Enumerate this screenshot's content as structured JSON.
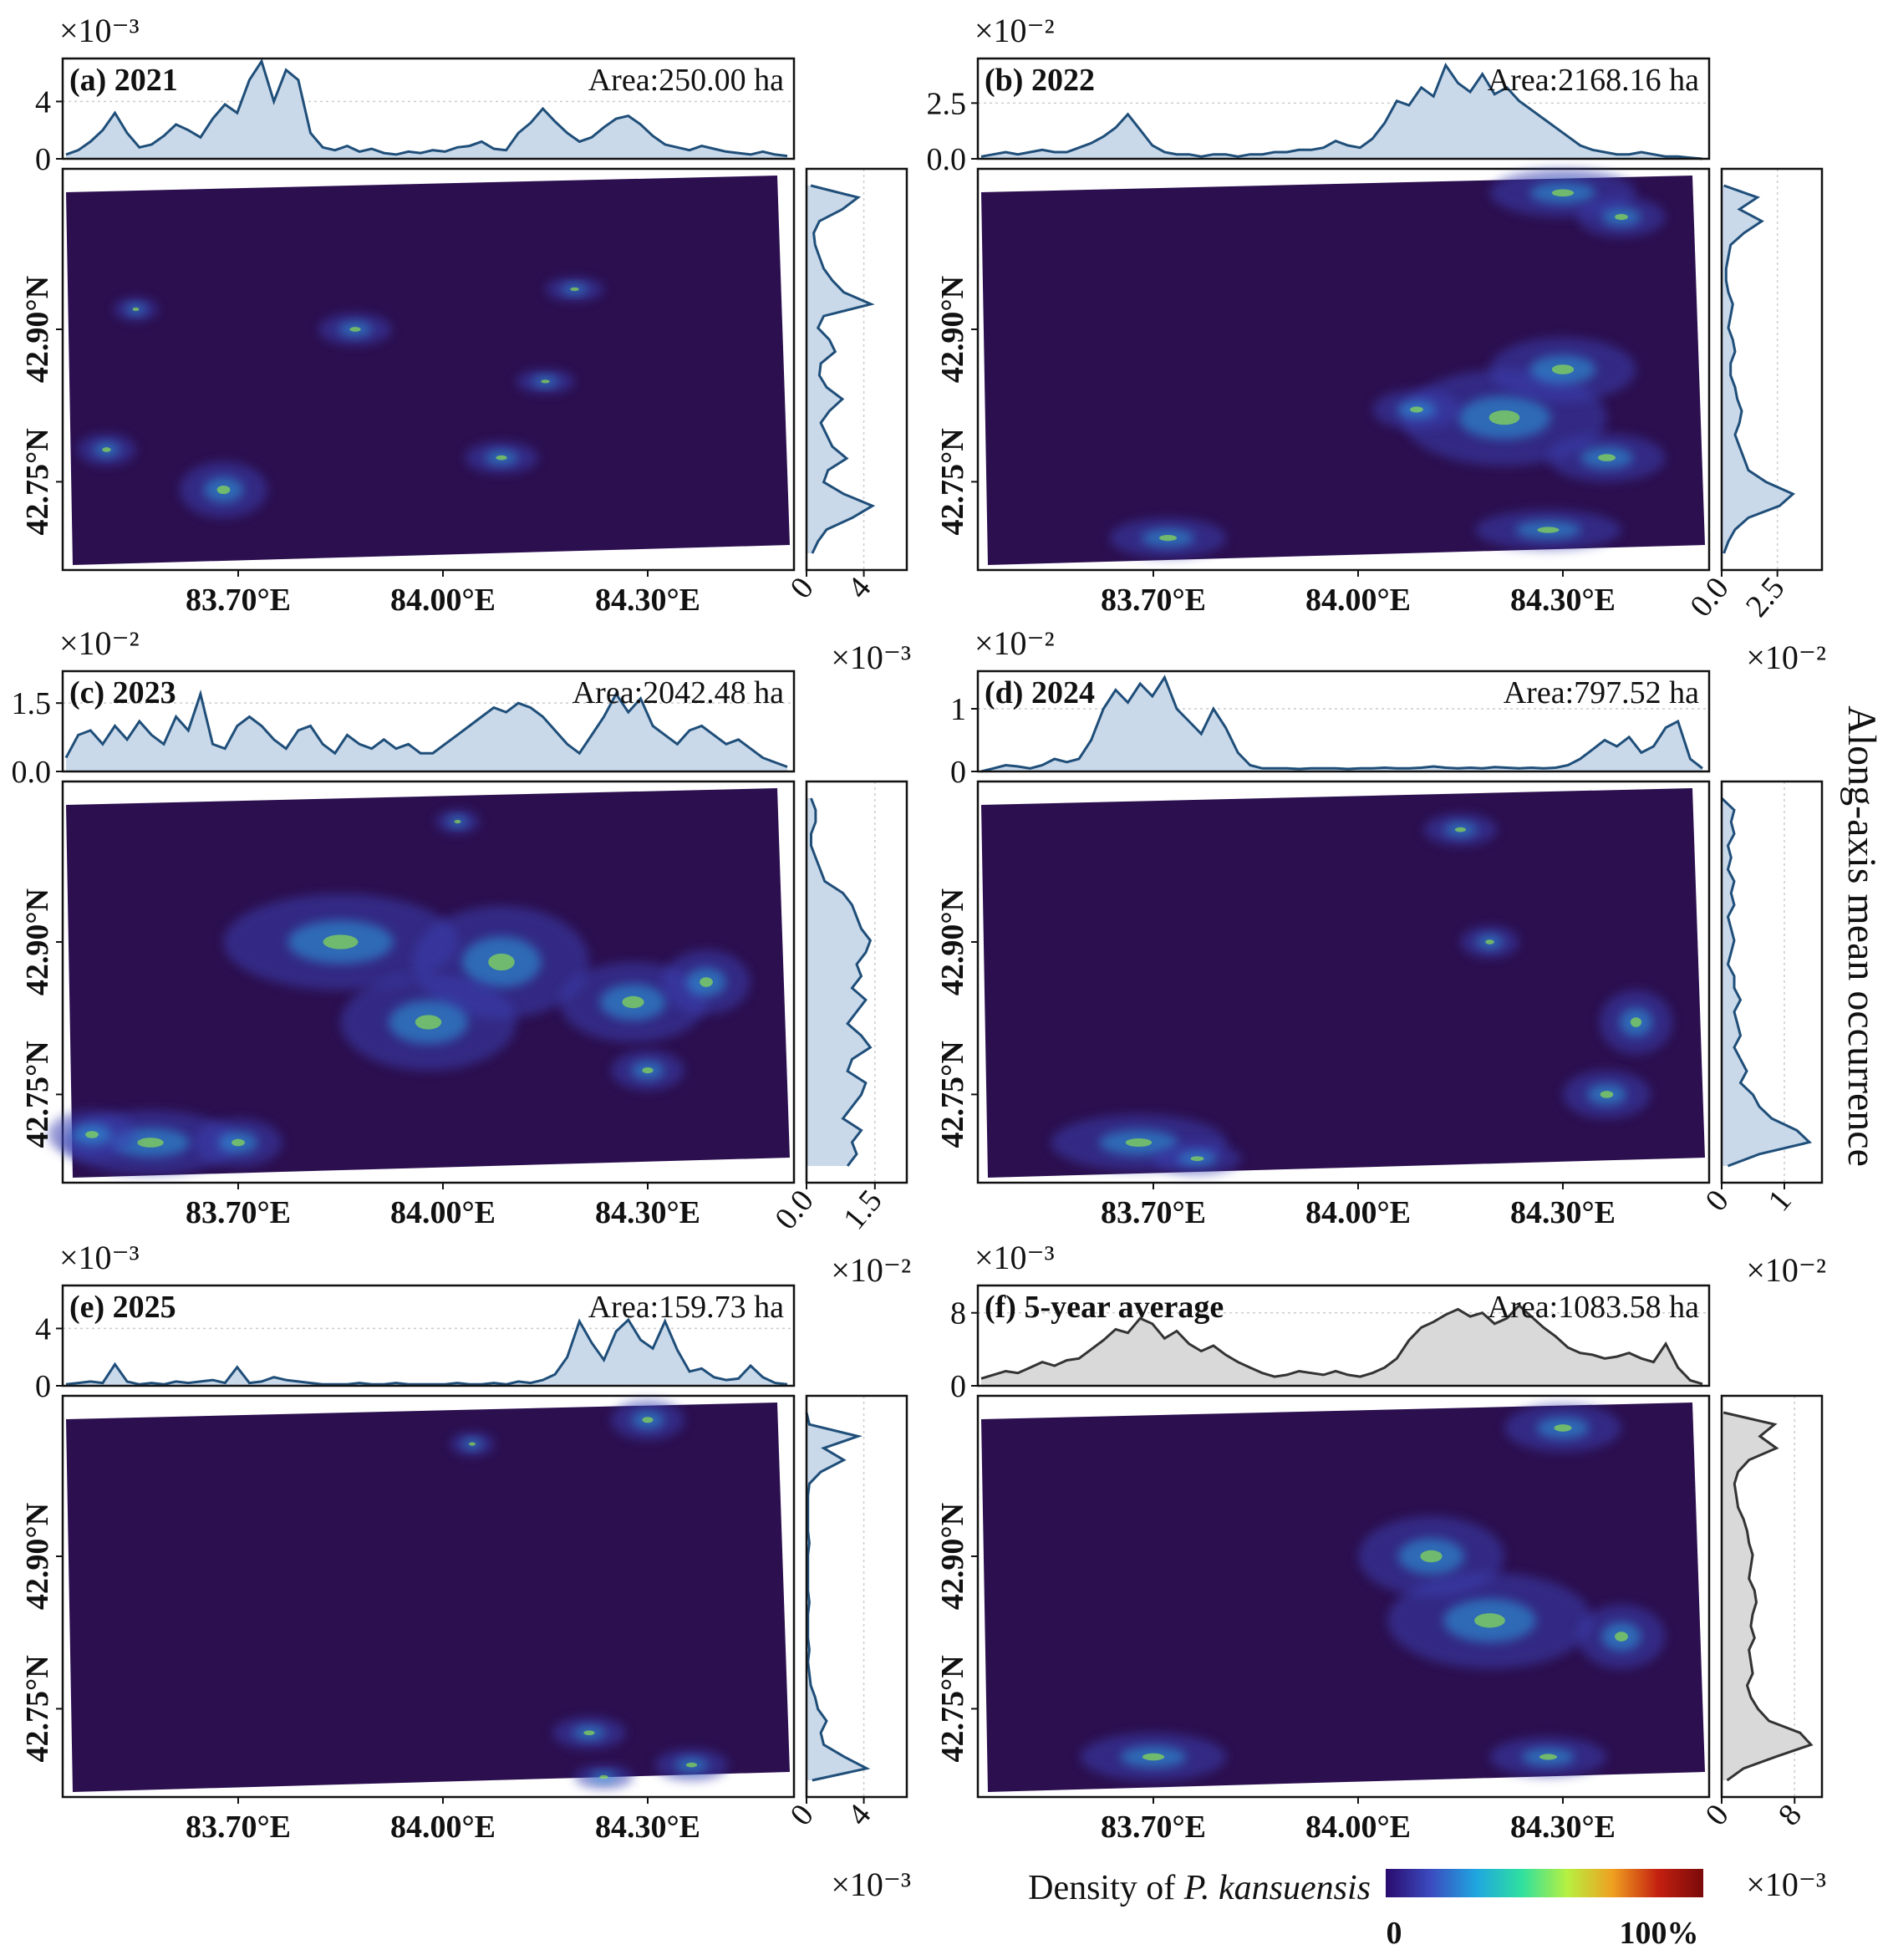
{
  "figure": {
    "right_axis_label": "Along-axis mean occurrence",
    "colorbar": {
      "label_prefix": "Density of ",
      "label_species": "P. kansuensis",
      "min_label": "0",
      "max_label": "100%",
      "colors": [
        "#2a0a6e",
        "#3b4cc0",
        "#1fa6e0",
        "#2fe0a0",
        "#b6f040",
        "#f0a020",
        "#c42010",
        "#7a0a0a"
      ]
    },
    "map_background": "#2b0f4f",
    "line_color_annual": "#1f4e79",
    "fill_color_annual": "#c9d9ea",
    "line_color_avg": "#333333",
    "fill_color_avg": "#d9d9d9"
  },
  "chart_data": [
    {
      "type": "area",
      "panel": "a",
      "title": "(a) 2021",
      "area_text": "Area:250.00 ha",
      "top_multiplier": "×10⁻³",
      "top_ylim": [
        0,
        7
      ],
      "top_ticks": [
        "0",
        "4"
      ],
      "top_tick_values": [
        0,
        4
      ],
      "right_multiplier": "×10⁻³",
      "right_xlim": [
        0,
        7
      ],
      "right_ticks": [
        "0",
        "4"
      ],
      "right_tick_values": [
        0,
        4
      ],
      "x_ticks": [
        "83.70°E",
        "84.00°E",
        "84.30°E"
      ],
      "y_ticks": [
        "42.90°N",
        "42.75°N"
      ],
      "top_profile": [
        0.3,
        0.6,
        1.2,
        2.0,
        3.2,
        1.8,
        0.8,
        1.0,
        1.6,
        2.4,
        2.0,
        1.5,
        2.8,
        3.8,
        3.2,
        5.5,
        6.8,
        4.0,
        6.2,
        5.5,
        1.8,
        0.8,
        0.6,
        0.9,
        0.5,
        0.7,
        0.4,
        0.3,
        0.5,
        0.4,
        0.6,
        0.5,
        0.8,
        0.9,
        1.2,
        0.7,
        0.6,
        1.8,
        2.5,
        3.5,
        2.6,
        1.8,
        1.2,
        1.5,
        2.2,
        2.8,
        3.0,
        2.4,
        1.6,
        1.0,
        0.8,
        0.6,
        0.9,
        0.7,
        0.5,
        0.4,
        0.3,
        0.5,
        0.3,
        0.2
      ],
      "right_profile": [
        0.3,
        3.6,
        2.5,
        0.9,
        0.5,
        0.6,
        0.9,
        1.2,
        1.8,
        2.6,
        4.5,
        1.2,
        0.8,
        1.6,
        2.0,
        1.0,
        0.9,
        1.4,
        2.5,
        1.6,
        1.0,
        1.4,
        1.8,
        2.8,
        1.5,
        1.2,
        2.6,
        4.6,
        3.2,
        1.4,
        0.8,
        0.4
      ],
      "hotspots": [
        [
          0.22,
          0.8,
          0.06,
          0.07
        ],
        [
          0.66,
          0.53,
          0.04,
          0.03
        ],
        [
          0.06,
          0.7,
          0.04,
          0.04
        ],
        [
          0.4,
          0.4,
          0.05,
          0.04
        ],
        [
          0.6,
          0.72,
          0.05,
          0.04
        ],
        [
          0.1,
          0.35,
          0.03,
          0.03
        ],
        [
          0.7,
          0.3,
          0.04,
          0.03
        ]
      ],
      "is_average": false
    },
    {
      "type": "area",
      "panel": "b",
      "title": "(b) 2022",
      "area_text": "Area:2168.16 ha",
      "top_multiplier": "×10⁻²",
      "top_ylim": [
        0,
        4.5
      ],
      "top_ticks": [
        "0.0",
        "2.5"
      ],
      "top_tick_values": [
        0,
        2.5
      ],
      "right_multiplier": "×10⁻²",
      "right_xlim": [
        0,
        4.5
      ],
      "right_ticks": [
        "0.0",
        "2.5"
      ],
      "right_tick_values": [
        0,
        2.5
      ],
      "x_ticks": [
        "83.70°E",
        "84.00°E",
        "84.30°E"
      ],
      "y_ticks": [
        "42.90°N",
        "42.75°N"
      ],
      "top_profile": [
        0.1,
        0.2,
        0.3,
        0.2,
        0.3,
        0.4,
        0.3,
        0.3,
        0.5,
        0.7,
        1.0,
        1.4,
        2.0,
        1.3,
        0.6,
        0.3,
        0.2,
        0.2,
        0.1,
        0.2,
        0.2,
        0.1,
        0.2,
        0.2,
        0.3,
        0.3,
        0.4,
        0.4,
        0.5,
        0.8,
        0.6,
        0.5,
        0.9,
        1.6,
        2.6,
        2.4,
        3.2,
        2.8,
        4.2,
        3.4,
        3.0,
        3.8,
        2.9,
        3.2,
        2.6,
        2.2,
        1.8,
        1.4,
        1.0,
        0.6,
        0.4,
        0.3,
        0.2,
        0.2,
        0.3,
        0.2,
        0.1,
        0.1,
        0.05,
        0.0
      ],
      "right_profile": [
        0.1,
        1.6,
        0.8,
        1.8,
        1.0,
        0.4,
        0.3,
        0.2,
        0.2,
        0.3,
        0.5,
        0.4,
        0.3,
        0.5,
        0.6,
        0.4,
        0.4,
        0.6,
        0.7,
        0.9,
        0.8,
        0.6,
        0.8,
        1.0,
        1.2,
        2.0,
        3.2,
        2.6,
        1.2,
        0.6,
        0.3,
        0.1
      ],
      "hotspots": [
        [
          0.8,
          0.06,
          0.1,
          0.06
        ],
        [
          0.88,
          0.12,
          0.06,
          0.05
        ],
        [
          0.72,
          0.62,
          0.14,
          0.12
        ],
        [
          0.8,
          0.5,
          0.1,
          0.08
        ],
        [
          0.26,
          0.92,
          0.08,
          0.05
        ],
        [
          0.86,
          0.72,
          0.08,
          0.06
        ],
        [
          0.78,
          0.9,
          0.1,
          0.05
        ],
        [
          0.6,
          0.6,
          0.06,
          0.05
        ]
      ],
      "is_average": false
    },
    {
      "type": "area",
      "panel": "c",
      "title": "(c) 2023",
      "area_text": "Area:2042.48 ha",
      "top_multiplier": "×10⁻²",
      "top_ylim": [
        0,
        2.2
      ],
      "top_ticks": [
        "0.0",
        "1.5"
      ],
      "top_tick_values": [
        0,
        1.5
      ],
      "right_multiplier": "×10⁻²",
      "right_xlim": [
        0,
        2.2
      ],
      "right_ticks": [
        "0.0",
        "1.5"
      ],
      "right_tick_values": [
        0,
        1.5
      ],
      "x_ticks": [
        "83.70°E",
        "84.00°E",
        "84.30°E"
      ],
      "y_ticks": [
        "42.90°N",
        "42.75°N"
      ],
      "top_profile": [
        0.3,
        0.8,
        0.9,
        0.6,
        1.0,
        0.7,
        1.1,
        0.8,
        0.6,
        1.2,
        0.9,
        1.7,
        0.6,
        0.5,
        1.0,
        1.2,
        1.0,
        0.7,
        0.5,
        0.9,
        1.0,
        0.6,
        0.4,
        0.8,
        0.6,
        0.5,
        0.7,
        0.5,
        0.6,
        0.4,
        0.4,
        0.6,
        0.8,
        1.0,
        1.2,
        1.4,
        1.3,
        1.5,
        1.4,
        1.2,
        0.9,
        0.6,
        0.4,
        0.8,
        1.2,
        1.7,
        1.3,
        1.6,
        1.0,
        0.8,
        0.6,
        0.9,
        1.0,
        0.8,
        0.6,
        0.7,
        0.5,
        0.3,
        0.2,
        0.1
      ],
      "right_profile": [
        0.1,
        0.2,
        0.2,
        0.1,
        0.1,
        0.2,
        0.3,
        0.4,
        0.8,
        1.0,
        1.1,
        1.2,
        1.4,
        1.3,
        1.1,
        1.2,
        1.0,
        1.3,
        1.1,
        0.9,
        1.2,
        1.4,
        1.0,
        0.9,
        1.3,
        1.2,
        1.0,
        0.8,
        1.2,
        1.0,
        1.1,
        0.9
      ],
      "hotspots": [
        [
          0.38,
          0.4,
          0.16,
          0.12
        ],
        [
          0.6,
          0.45,
          0.12,
          0.14
        ],
        [
          0.78,
          0.55,
          0.1,
          0.1
        ],
        [
          0.88,
          0.5,
          0.06,
          0.08
        ],
        [
          0.5,
          0.6,
          0.12,
          0.12
        ],
        [
          0.12,
          0.9,
          0.12,
          0.08
        ],
        [
          0.24,
          0.9,
          0.06,
          0.06
        ],
        [
          0.8,
          0.72,
          0.05,
          0.05
        ],
        [
          0.04,
          0.88,
          0.06,
          0.06
        ],
        [
          0.54,
          0.1,
          0.03,
          0.03
        ]
      ],
      "is_average": false
    },
    {
      "type": "area",
      "panel": "d",
      "title": "(d) 2024",
      "area_text": "Area:797.52 ha",
      "top_multiplier": "×10⁻²",
      "top_ylim": [
        0,
        1.6
      ],
      "top_ticks": [
        "0",
        "1"
      ],
      "top_tick_values": [
        0,
        1
      ],
      "right_multiplier": "×10⁻²",
      "right_xlim": [
        0,
        1.6
      ],
      "right_ticks": [
        "0",
        "1"
      ],
      "right_tick_values": [
        0,
        1
      ],
      "x_ticks": [
        "83.70°E",
        "84.00°E",
        "84.30°E"
      ],
      "y_ticks": [
        "42.90°N",
        "42.75°N"
      ],
      "top_profile": [
        0.0,
        0.05,
        0.1,
        0.08,
        0.05,
        0.1,
        0.2,
        0.15,
        0.2,
        0.5,
        1.0,
        1.3,
        1.1,
        1.4,
        1.2,
        1.5,
        1.0,
        0.8,
        0.6,
        1.0,
        0.7,
        0.3,
        0.1,
        0.05,
        0.05,
        0.05,
        0.04,
        0.05,
        0.05,
        0.05,
        0.04,
        0.05,
        0.05,
        0.06,
        0.05,
        0.05,
        0.06,
        0.08,
        0.06,
        0.05,
        0.06,
        0.05,
        0.07,
        0.06,
        0.05,
        0.06,
        0.05,
        0.06,
        0.1,
        0.2,
        0.35,
        0.5,
        0.4,
        0.55,
        0.3,
        0.4,
        0.7,
        0.8,
        0.2,
        0.05
      ],
      "right_profile": [
        0.0,
        0.2,
        0.15,
        0.2,
        0.1,
        0.15,
        0.1,
        0.2,
        0.15,
        0.2,
        0.1,
        0.15,
        0.2,
        0.15,
        0.1,
        0.2,
        0.2,
        0.3,
        0.2,
        0.25,
        0.3,
        0.2,
        0.3,
        0.4,
        0.3,
        0.5,
        0.6,
        0.8,
        1.2,
        1.4,
        0.6,
        0.1
      ],
      "hotspots": [
        [
          0.22,
          0.9,
          0.12,
          0.07
        ],
        [
          0.3,
          0.94,
          0.06,
          0.04
        ],
        [
          0.9,
          0.6,
          0.05,
          0.08
        ],
        [
          0.86,
          0.78,
          0.06,
          0.06
        ],
        [
          0.7,
          0.4,
          0.04,
          0.04
        ],
        [
          0.66,
          0.12,
          0.05,
          0.04
        ]
      ],
      "is_average": false
    },
    {
      "type": "area",
      "panel": "e",
      "title": "(e) 2025",
      "area_text": "Area:159.73 ha",
      "top_multiplier": "×10⁻³",
      "top_ylim": [
        0,
        7
      ],
      "top_ticks": [
        "0",
        "4"
      ],
      "top_tick_values": [
        0,
        4
      ],
      "right_multiplier": "×10⁻³",
      "right_xlim": [
        0,
        7
      ],
      "right_ticks": [
        "0",
        "4"
      ],
      "right_tick_values": [
        0,
        4
      ],
      "x_ticks": [
        "83.70°E",
        "84.00°E",
        "84.30°E"
      ],
      "y_ticks": [
        "42.90°N",
        "42.75°N"
      ],
      "top_profile": [
        0.1,
        0.2,
        0.3,
        0.2,
        1.5,
        0.3,
        0.1,
        0.2,
        0.1,
        0.3,
        0.2,
        0.3,
        0.4,
        0.2,
        1.3,
        0.2,
        0.3,
        0.6,
        0.4,
        0.3,
        0.2,
        0.1,
        0.1,
        0.1,
        0.2,
        0.1,
        0.1,
        0.2,
        0.1,
        0.1,
        0.1,
        0.1,
        0.2,
        0.1,
        0.1,
        0.2,
        0.1,
        0.3,
        0.2,
        0.4,
        0.8,
        2.0,
        4.5,
        3.0,
        1.8,
        3.8,
        4.6,
        3.2,
        2.6,
        4.5,
        2.5,
        1.0,
        1.2,
        0.6,
        0.4,
        0.5,
        1.4,
        0.6,
        0.2,
        0.1
      ],
      "right_profile": [
        0.0,
        0.2,
        3.6,
        1.2,
        2.6,
        1.0,
        0.2,
        0.1,
        0.1,
        0.1,
        0.1,
        0.2,
        0.1,
        0.1,
        0.1,
        0.1,
        0.2,
        0.1,
        0.1,
        0.1,
        0.2,
        0.1,
        0.2,
        0.3,
        0.6,
        0.8,
        1.4,
        1.0,
        1.2,
        2.6,
        4.2,
        0.4
      ],
      "hotspots": [
        [
          0.8,
          0.06,
          0.05,
          0.05
        ],
        [
          0.56,
          0.12,
          0.03,
          0.03
        ],
        [
          0.74,
          0.95,
          0.04,
          0.03
        ],
        [
          0.86,
          0.92,
          0.05,
          0.04
        ],
        [
          0.72,
          0.84,
          0.05,
          0.04
        ]
      ],
      "is_average": false
    },
    {
      "type": "area",
      "panel": "f",
      "title": "(f) 5-year average",
      "area_text": "Area:1083.58 ha",
      "top_multiplier": "×10⁻³",
      "top_ylim": [
        0,
        11
      ],
      "top_ticks": [
        "0",
        "8"
      ],
      "top_tick_values": [
        0,
        8
      ],
      "right_multiplier": "×10⁻³",
      "right_xlim": [
        0,
        11
      ],
      "right_ticks": [
        "0",
        "8"
      ],
      "right_tick_values": [
        0,
        8
      ],
      "x_ticks": [
        "83.70°E",
        "84.00°E",
        "84.30°E"
      ],
      "y_ticks": [
        "42.90°N",
        "42.75°N"
      ],
      "top_profile": [
        0.8,
        1.2,
        1.6,
        1.4,
        2.0,
        2.6,
        2.2,
        2.8,
        3.0,
        4.0,
        5.0,
        6.2,
        5.8,
        7.4,
        6.8,
        5.2,
        6.0,
        4.6,
        3.8,
        4.4,
        3.4,
        2.6,
        2.0,
        1.4,
        1.0,
        1.2,
        1.6,
        1.4,
        1.2,
        1.6,
        1.2,
        1.0,
        1.4,
        2.0,
        3.0,
        5.0,
        6.4,
        7.0,
        7.8,
        8.4,
        7.6,
        8.0,
        6.8,
        7.4,
        8.8,
        7.6,
        6.4,
        5.4,
        4.2,
        3.6,
        3.4,
        3.0,
        3.2,
        3.6,
        3.0,
        2.6,
        4.6,
        2.0,
        0.6,
        0.2
      ],
      "right_profile": [
        0.2,
        5.8,
        4.2,
        6.0,
        3.0,
        1.8,
        1.4,
        1.6,
        1.8,
        2.4,
        2.8,
        3.0,
        3.4,
        3.2,
        3.0,
        3.6,
        3.8,
        3.4,
        3.2,
        3.6,
        3.0,
        3.2,
        3.4,
        2.8,
        3.2,
        4.0,
        5.2,
        8.6,
        9.8,
        6.0,
        2.4,
        0.6
      ],
      "hotspots": [
        [
          0.7,
          0.56,
          0.14,
          0.12
        ],
        [
          0.8,
          0.08,
          0.08,
          0.06
        ],
        [
          0.24,
          0.9,
          0.1,
          0.06
        ],
        [
          0.62,
          0.4,
          0.1,
          0.1
        ],
        [
          0.88,
          0.6,
          0.06,
          0.08
        ],
        [
          0.78,
          0.9,
          0.08,
          0.05
        ]
      ],
      "is_average": true
    }
  ]
}
